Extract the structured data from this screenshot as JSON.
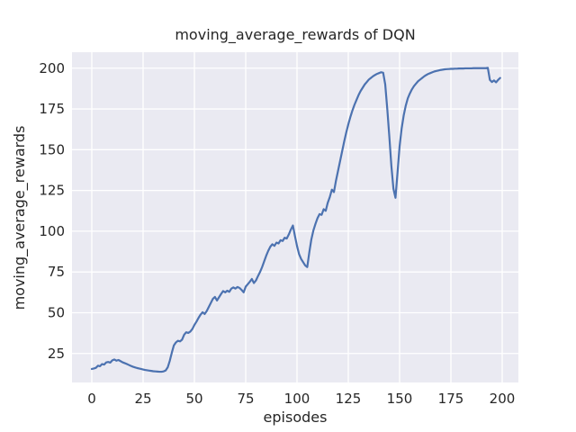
{
  "chart_data": {
    "type": "line",
    "title": "moving_average_rewards of DQN",
    "xlabel": "episodes",
    "ylabel": "moving_average_rewards",
    "xticks": [
      0,
      25,
      50,
      75,
      100,
      125,
      150,
      175,
      200
    ],
    "yticks": [
      25,
      50,
      75,
      100,
      125,
      150,
      175,
      200
    ],
    "xlim": [
      -9.65,
      207.9
    ],
    "ylim": [
      7.2,
      209.8
    ],
    "grid": true,
    "legend_position": "none",
    "line_color": "#4c72b0",
    "axes_background": "#eaeaf2",
    "grid_color": "#ffffff",
    "text_color": "#262626",
    "x_start": 0,
    "x_step": 1,
    "series": [
      {
        "name": "moving_average_rewards",
        "values": [
          15.5,
          15.8,
          16.2,
          17.5,
          17.2,
          18.5,
          18.2,
          19.5,
          19.8,
          19.4,
          20.8,
          21.3,
          20.6,
          21.0,
          20.3,
          19.6,
          19.1,
          18.6,
          18.0,
          17.4,
          16.9,
          16.5,
          16.1,
          15.8,
          15.5,
          15.2,
          14.9,
          14.7,
          14.5,
          14.3,
          14.1,
          14.0,
          13.9,
          13.8,
          13.8,
          14.0,
          14.6,
          16.5,
          20.5,
          25.5,
          30.0,
          31.8,
          32.8,
          32.4,
          33.5,
          36.5,
          38.0,
          37.6,
          38.4,
          40.0,
          42.5,
          44.5,
          46.8,
          48.8,
          50.3,
          49.2,
          51.0,
          53.5,
          56.0,
          58.5,
          59.7,
          57.5,
          59.5,
          61.5,
          63.3,
          62.5,
          63.5,
          62.8,
          64.8,
          65.5,
          64.8,
          65.8,
          65.2,
          64.0,
          62.5,
          66.0,
          67.5,
          69.0,
          70.7,
          68.2,
          69.8,
          72.5,
          75.0,
          78.0,
          81.5,
          85.0,
          88.0,
          90.5,
          92.0,
          91.0,
          93.0,
          92.5,
          94.5,
          94.0,
          96.0,
          95.5,
          98.0,
          101.0,
          103.5,
          97.0,
          91.0,
          86.0,
          83.0,
          81.0,
          79.0,
          78.0,
          87.0,
          95.0,
          100.5,
          104.5,
          108.0,
          110.5,
          110.0,
          113.5,
          112.5,
          117.5,
          121.0,
          125.5,
          124.0,
          131.0,
          137.0,
          143.0,
          149.0,
          155.0,
          160.5,
          165.5,
          170.0,
          174.0,
          177.5,
          180.5,
          183.5,
          186.0,
          188.0,
          190.0,
          191.5,
          193.0,
          194.0,
          195.0,
          195.8,
          196.5,
          197.0,
          197.5,
          197.2,
          190.0,
          175.0,
          158.0,
          140.0,
          126.0,
          120.5,
          136.0,
          152.0,
          163.0,
          171.0,
          177.0,
          181.5,
          184.5,
          187.0,
          189.0,
          190.5,
          192.0,
          193.0,
          194.0,
          195.0,
          195.8,
          196.5,
          197.0,
          197.5,
          198.0,
          198.3,
          198.6,
          198.9,
          199.1,
          199.3,
          199.4,
          199.5,
          199.6,
          199.6,
          199.7,
          199.7,
          199.8,
          199.8,
          199.8,
          199.9,
          199.9,
          199.9,
          199.9,
          200.0,
          200.0,
          200.0,
          200.0,
          200.0,
          200.0,
          200.0,
          200.2,
          192.8,
          191.5,
          192.5,
          191.3,
          192.8,
          194.0
        ]
      }
    ]
  }
}
